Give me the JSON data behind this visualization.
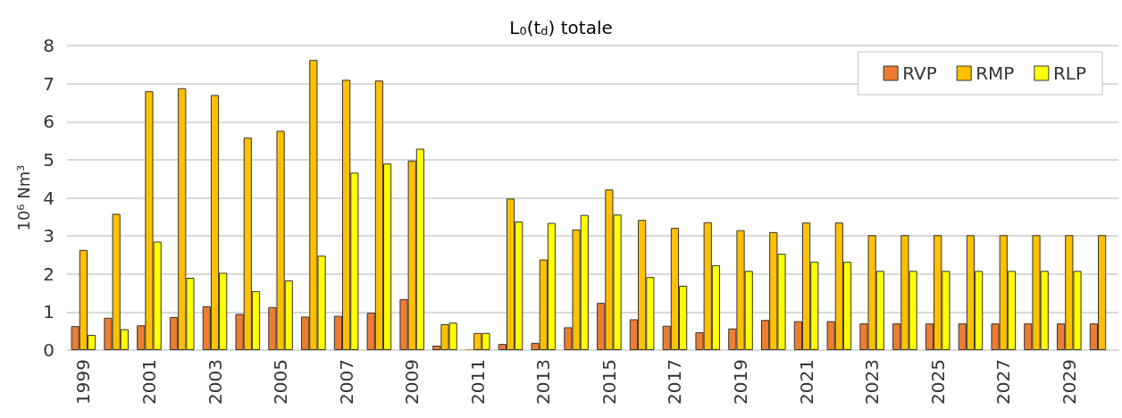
{
  "chart_data": {
    "type": "bar",
    "title": "L$_{0}$(t$_{d}$) totale",
    "ylabel": "10⁶ Nm³",
    "categories": [
      "1999",
      null,
      "2001",
      null,
      "2003",
      null,
      "2005",
      null,
      "2007",
      null,
      "2009",
      null,
      "2011",
      null,
      "2013",
      null,
      "2015",
      null,
      "2017",
      null,
      "2019",
      null,
      "2021",
      null,
      "2023",
      null,
      "2025",
      null,
      "2027",
      null,
      "2029",
      null
    ],
    "series": [
      {
        "name": "RVP",
        "color": "#ed7d31",
        "values": [
          0.63,
          0.85,
          0.65,
          0.87,
          1.15,
          0.95,
          1.13,
          0.88,
          0.9,
          0.98,
          1.34,
          0.12,
          0.02,
          0.16,
          0.19,
          0.6,
          1.24,
          0.81,
          0.64,
          0.47,
          0.57,
          0.79,
          0.76,
          0.76,
          0.7,
          0.7,
          0.7,
          0.7,
          0.7,
          0.7,
          0.7,
          0.7
        ]
      },
      {
        "name": "RMP",
        "color": "#ffc000",
        "values": [
          2.63,
          3.58,
          6.8,
          6.88,
          6.7,
          5.58,
          5.76,
          7.62,
          7.1,
          7.08,
          4.98,
          0.68,
          0.45,
          3.98,
          2.38,
          3.17,
          4.22,
          3.42,
          3.21,
          3.36,
          3.15,
          3.1,
          3.35,
          3.35,
          3.02,
          3.02,
          3.02,
          3.02,
          3.02,
          3.02,
          3.02,
          3.02
        ]
      },
      {
        "name": "RLP",
        "color": "#ffff00",
        "values": [
          0.4,
          0.55,
          2.85,
          1.9,
          2.03,
          1.55,
          1.83,
          2.48,
          4.66,
          4.9,
          5.29,
          0.72,
          0.45,
          3.38,
          3.34,
          3.55,
          3.56,
          1.92,
          1.69,
          2.23,
          2.08,
          2.53,
          2.32,
          2.32,
          2.08,
          2.08,
          2.08,
          2.08,
          2.08,
          2.08,
          2.08,
          null
        ]
      }
    ],
    "ylim": [
      0,
      8
    ],
    "yticks": [
      0,
      1,
      2,
      3,
      4,
      5,
      6,
      7,
      8
    ],
    "grid": "y",
    "legend": "top right"
  }
}
